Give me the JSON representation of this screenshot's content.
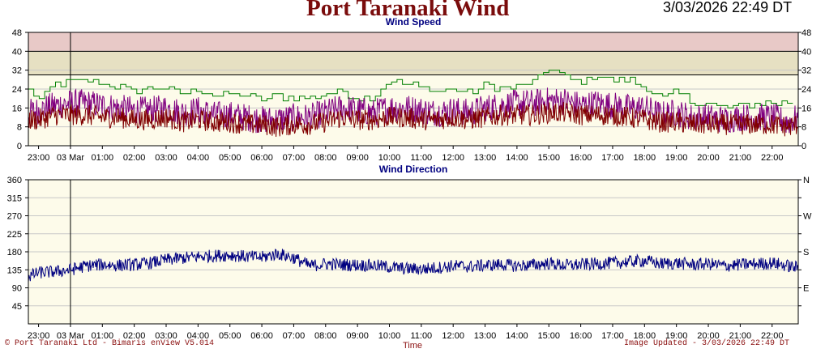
{
  "header": {
    "title": "Port Taranaki Wind",
    "timestamp": "3/03/2026 22:49 DT"
  },
  "footer": {
    "copyright": "© Port Taranaki Ltd - Bimaris enView V5.014",
    "time_label": "Time",
    "updated": "Image Updated - 3/03/2026 22:49 DT"
  },
  "colors": {
    "band_high": "#e8c9c7",
    "band_mid": "#e6e0c2",
    "plot_bg": "#fdfbea",
    "gust": "#008000",
    "max_speed": "#800080",
    "mean_speed": "#800000",
    "direction": "#000080",
    "title_text": "#000080"
  },
  "chart_data": [
    {
      "type": "line",
      "title": "Wind Speed",
      "ylim": [
        0,
        48
      ],
      "yticks": [
        "0",
        "8",
        "16",
        "24",
        "32",
        "40",
        "48"
      ],
      "ytick_values": [
        0,
        8,
        16,
        24,
        32,
        40,
        48
      ],
      "bands": [
        {
          "from": 40,
          "to": 48,
          "color": "#e8c9c7"
        },
        {
          "from": 30,
          "to": 40,
          "color": "#e6e0c2"
        }
      ],
      "xlim": [
        22.68,
        46.82
      ],
      "xticks": [
        "23:00",
        "03 Mar",
        "01:00",
        "02:00",
        "03:00",
        "04:00",
        "05:00",
        "06:00",
        "07:00",
        "08:00",
        "09:00",
        "10:00",
        "11:00",
        "12:00",
        "13:00",
        "14:00",
        "15:00",
        "16:00",
        "17:00",
        "18:00",
        "19:00",
        "20:00",
        "21:00",
        "22:00"
      ],
      "xtick_hours": [
        23,
        24,
        25,
        26,
        27,
        28,
        29,
        30,
        31,
        32,
        33,
        34,
        35,
        36,
        37,
        38,
        39,
        40,
        41,
        42,
        43,
        44,
        45,
        46
      ],
      "day_marker_hour": 24,
      "x": [
        22.7,
        23.0,
        23.5,
        24.0,
        24.5,
        25.0,
        25.5,
        26.0,
        26.5,
        27.0,
        27.5,
        28.0,
        28.5,
        29.0,
        29.5,
        30.0,
        30.5,
        31.0,
        31.5,
        32.0,
        32.5,
        33.0,
        33.5,
        34.0,
        34.5,
        35.0,
        35.5,
        36.0,
        36.5,
        37.0,
        37.5,
        38.0,
        38.5,
        39.0,
        39.5,
        40.0,
        40.5,
        41.0,
        41.5,
        42.0,
        42.5,
        43.0,
        43.5,
        44.0,
        44.5,
        45.0,
        45.5,
        46.0,
        46.5,
        46.8
      ],
      "series": [
        {
          "role": "gust",
          "values": [
            24,
            19,
            26,
            27,
            28,
            26,
            25,
            23,
            25,
            24,
            22,
            24,
            21,
            22,
            21,
            20,
            21,
            20,
            20,
            22,
            23,
            20,
            21,
            28,
            26,
            25,
            23,
            24,
            22,
            26,
            24,
            25,
            27,
            33,
            29,
            27,
            30,
            27,
            28,
            25,
            20,
            23,
            18,
            18,
            16,
            17,
            18,
            18,
            18,
            18
          ]
        },
        {
          "role": "max",
          "values": [
            14,
            15,
            17,
            18,
            18,
            17,
            16,
            15,
            15,
            16,
            14,
            15,
            13,
            13,
            12,
            11,
            11,
            12,
            12,
            14,
            16,
            15,
            14,
            16,
            16,
            15,
            14,
            15,
            14,
            16,
            17,
            18,
            18,
            19,
            19,
            17,
            18,
            17,
            16,
            16,
            13,
            14,
            12,
            12,
            11,
            12,
            12,
            12,
            10,
            12
          ]
        },
        {
          "role": "mean",
          "values": [
            11,
            11,
            13,
            13,
            13,
            12,
            12,
            11,
            11,
            12,
            10,
            11,
            10,
            10,
            9,
            9,
            8,
            9,
            9,
            10,
            12,
            11,
            11,
            12,
            12,
            11,
            11,
            12,
            11,
            12,
            13,
            13,
            13,
            14,
            14,
            13,
            13,
            13,
            12,
            11,
            10,
            10,
            9,
            9,
            9,
            9,
            9,
            9,
            8,
            9
          ]
        }
      ]
    },
    {
      "type": "line",
      "title": "Wind Direction",
      "ylim": [
        0,
        360
      ],
      "yticks": [
        "45",
        "90",
        "135",
        "180",
        "225",
        "270",
        "315",
        "360"
      ],
      "ytick_values": [
        45,
        90,
        135,
        180,
        225,
        270,
        315,
        360
      ],
      "right_ticks": [
        "E",
        "S",
        "W",
        "N"
      ],
      "right_tick_values": [
        90,
        180,
        270,
        360
      ],
      "xlim": [
        22.68,
        46.82
      ],
      "xticks": [
        "23:00",
        "03 Mar",
        "01:00",
        "02:00",
        "03:00",
        "04:00",
        "05:00",
        "06:00",
        "07:00",
        "08:00",
        "09:00",
        "10:00",
        "11:00",
        "12:00",
        "13:00",
        "14:00",
        "15:00",
        "16:00",
        "17:00",
        "18:00",
        "19:00",
        "20:00",
        "21:00",
        "22:00"
      ],
      "xtick_hours": [
        23,
        24,
        25,
        26,
        27,
        28,
        29,
        30,
        31,
        32,
        33,
        34,
        35,
        36,
        37,
        38,
        39,
        40,
        41,
        42,
        43,
        44,
        45,
        46
      ],
      "day_marker_hour": 24,
      "x": [
        22.7,
        23.0,
        23.5,
        24.0,
        24.5,
        25.0,
        25.5,
        26.0,
        26.5,
        27.0,
        27.5,
        28.0,
        28.5,
        29.0,
        29.5,
        30.0,
        30.5,
        31.0,
        31.5,
        32.0,
        32.5,
        33.0,
        33.5,
        34.0,
        34.5,
        35.0,
        35.5,
        36.0,
        36.5,
        37.0,
        37.5,
        38.0,
        38.5,
        39.0,
        39.5,
        40.0,
        40.5,
        41.0,
        41.5,
        42.0,
        42.5,
        43.0,
        43.5,
        44.0,
        44.5,
        45.0,
        45.5,
        46.0,
        46.5,
        46.8
      ],
      "series": [
        {
          "role": "direction",
          "values": [
            118,
            128,
            130,
            135,
            145,
            148,
            146,
            148,
            152,
            160,
            164,
            168,
            170,
            172,
            168,
            166,
            175,
            165,
            145,
            150,
            148,
            147,
            146,
            142,
            138,
            137,
            140,
            145,
            143,
            146,
            148,
            145,
            147,
            151,
            146,
            148,
            150,
            152,
            155,
            158,
            150,
            152,
            148,
            150,
            145,
            148,
            150,
            152,
            145,
            140
          ]
        }
      ]
    }
  ]
}
